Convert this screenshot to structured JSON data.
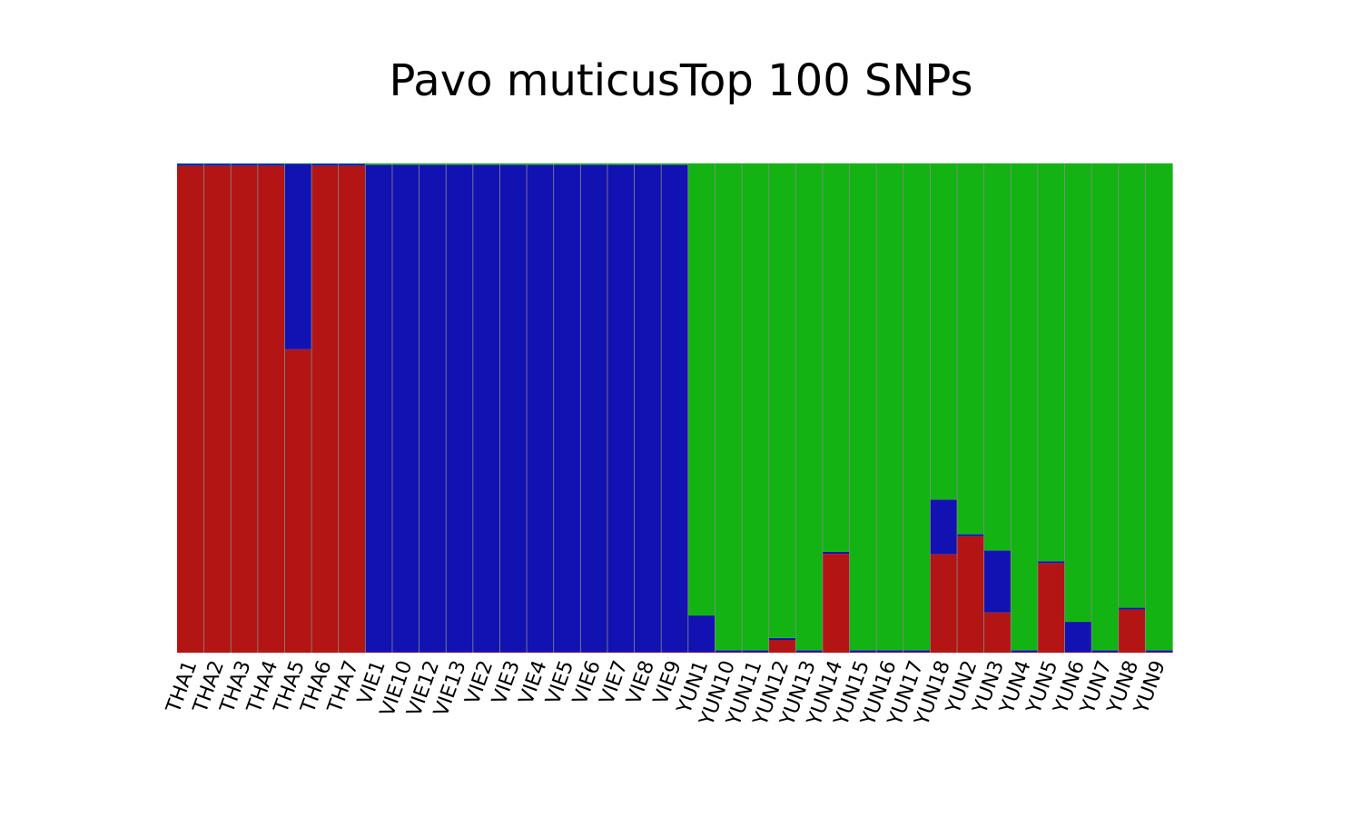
{
  "chart_data": {
    "type": "bar",
    "stacked": true,
    "title": "Pavo muticusTop 100 SNPs",
    "xlabel": "",
    "ylabel": "",
    "ylim": [
      0,
      1
    ],
    "grid": false,
    "legend": "none",
    "categories": [
      "THA1",
      "THA2",
      "THA3",
      "THA4",
      "THA5",
      "THA6",
      "THA7",
      "VIE1",
      "VIE10",
      "VIE12",
      "VIE13",
      "VIE2",
      "VIE3",
      "VIE4",
      "VIE5",
      "VIE6",
      "VIE7",
      "VIE8",
      "VIE9",
      "YUN1",
      "YUN10",
      "YUN11",
      "YUN12",
      "YUN13",
      "YUN14",
      "YUN15",
      "YUN16",
      "YUN17",
      "YUN18",
      "YUN2",
      "YUN3",
      "YUN4",
      "YUN5",
      "YUN6",
      "YUN7",
      "YUN8",
      "YUN9"
    ],
    "categories_secondary": [
      null,
      null,
      null,
      null,
      null,
      null,
      null,
      null,
      null,
      null,
      null,
      null,
      null,
      null,
      null,
      null,
      null,
      null,
      null,
      null,
      null,
      null,
      null,
      null,
      null,
      null,
      null,
      null,
      null,
      null,
      null,
      null,
      null,
      null,
      null,
      null,
      null
    ],
    "series": [
      {
        "color": "#b31515",
        "values": [
          0.995,
          0.995,
          0.995,
          0.995,
          0.62,
          0.995,
          0.995,
          0.001,
          0.001,
          0.001,
          0.001,
          0.001,
          0.001,
          0.001,
          0.001,
          0.001,
          0.001,
          0.001,
          0.001,
          0.001,
          0.001,
          0.001,
          0.026,
          0.001,
          0.202,
          0.001,
          0.001,
          0.001,
          0.201,
          0.238,
          0.082,
          0.001,
          0.183,
          0.001,
          0.001,
          0.088,
          0.001
        ]
      },
      {
        "color": "#1212b3",
        "values": [
          0.004,
          0.004,
          0.004,
          0.004,
          0.379,
          0.004,
          0.004,
          0.996,
          0.996,
          0.996,
          0.996,
          0.996,
          0.996,
          0.996,
          0.996,
          0.996,
          0.996,
          0.996,
          0.996,
          0.075,
          0.004,
          0.004,
          0.004,
          0.004,
          0.004,
          0.004,
          0.004,
          0.004,
          0.112,
          0.004,
          0.127,
          0.004,
          0.004,
          0.062,
          0.004,
          0.004,
          0.004
        ]
      },
      {
        "color": "#13b313",
        "values": [
          0.001,
          0.001,
          0.001,
          0.001,
          0.001,
          0.001,
          0.001,
          0.003,
          0.003,
          0.003,
          0.003,
          0.003,
          0.003,
          0.003,
          0.003,
          0.003,
          0.003,
          0.003,
          0.003,
          0.924,
          0.995,
          0.995,
          0.97,
          0.995,
          0.794,
          0.995,
          0.995,
          0.995,
          0.687,
          0.758,
          0.791,
          0.995,
          0.813,
          0.937,
          0.995,
          0.908,
          0.995
        ]
      }
    ]
  }
}
